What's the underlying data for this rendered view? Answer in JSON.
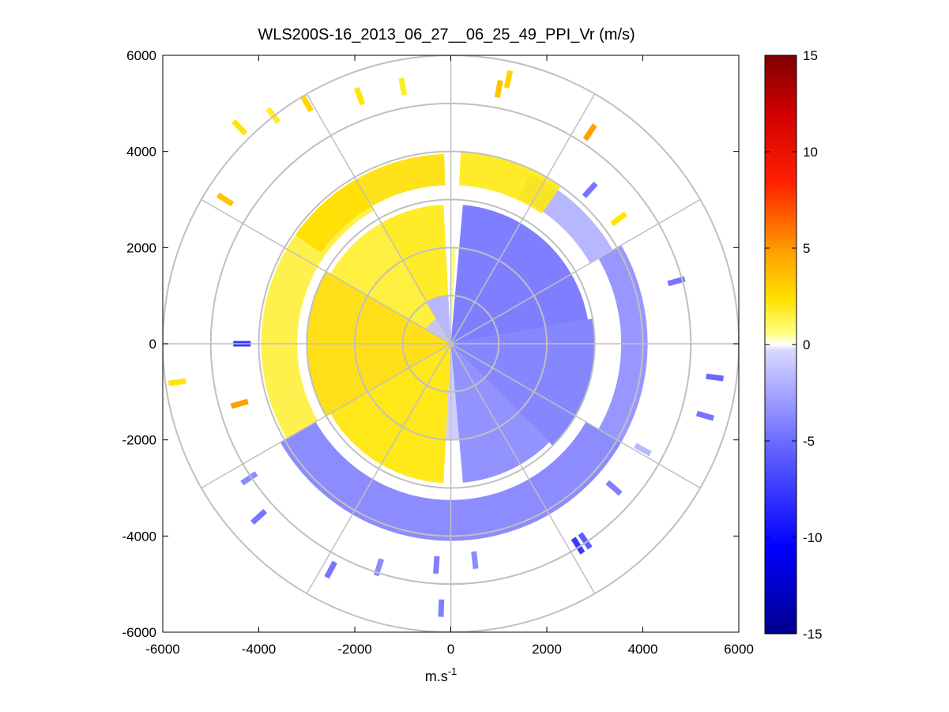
{
  "chart_data": {
    "type": "heatmap",
    "subtype": "polar PPI scan",
    "title": "WLS200S-16_2013_06_27__06_25_49_PPI_Vr (m/s)",
    "xlabel": "m.s",
    "xlabel_superscript": "-1",
    "ylabel": "",
    "xlim": [
      -6000,
      6000
    ],
    "ylim": [
      -6000,
      6000
    ],
    "x_ticks": [
      "-6000",
      "-4000",
      "-2000",
      "0",
      "2000",
      "4000",
      "6000"
    ],
    "y_ticks": [
      "6000",
      "4000",
      "2000",
      "0",
      "-2000",
      "-4000",
      "-6000"
    ],
    "x_tick_values": [
      -6000,
      -4000,
      -2000,
      0,
      2000,
      4000,
      6000
    ],
    "y_tick_values": [
      6000,
      4000,
      2000,
      0,
      -2000,
      -4000,
      -6000
    ],
    "range_rings": [
      1000,
      2000,
      3000,
      4000,
      5000,
      6000
    ],
    "spokes_deg": [
      0,
      30,
      60,
      90,
      120,
      150,
      180,
      210,
      240,
      270,
      300,
      330
    ],
    "colorbar": {
      "range": [
        -15,
        15
      ],
      "ticks": [
        "15",
        "10",
        "5",
        "0",
        "-5",
        "-10",
        "-15"
      ],
      "tick_values": [
        15,
        10,
        5,
        0,
        -5,
        -10,
        -15
      ],
      "colormap": "blue-white-yellow-red"
    },
    "colors": {
      "positive": "#ffe000",
      "positive_strong": "#ff9900",
      "negative": "#8080ff",
      "negative_strong": "#2020ff",
      "grid": "#c0c0c0"
    },
    "sectors": [
      {
        "az_from": 0,
        "az_to": 3,
        "r_from": 0,
        "r_to": 2000,
        "value": 0.5
      },
      {
        "az_from": 5,
        "az_to": 80,
        "r_from": 0,
        "r_to": 2900,
        "value": -3.2
      },
      {
        "az_from": 80,
        "az_to": 135,
        "r_from": 0,
        "r_to": 3000,
        "value": -2.8
      },
      {
        "az_from": 135,
        "az_to": 175,
        "r_from": 0,
        "r_to": 2900,
        "value": -2.2
      },
      {
        "az_from": 175,
        "az_to": 183,
        "r_from": 0,
        "r_to": 2000,
        "value": -0.6
      },
      {
        "az_from": 183,
        "az_to": 240,
        "r_from": 0,
        "r_to": 2900,
        "value": 2.0
      },
      {
        "az_from": 240,
        "az_to": 300,
        "r_from": 0,
        "r_to": 3000,
        "value": 2.3
      },
      {
        "az_from": 300,
        "az_to": 330,
        "r_from": 0,
        "r_to": 2900,
        "value": 1.5
      },
      {
        "az_from": 330,
        "az_to": 357,
        "r_from": 1000,
        "r_to": 2900,
        "value": 1.8
      },
      {
        "az_from": 330,
        "az_to": 357,
        "r_from": 0,
        "r_to": 1000,
        "value": -1.2
      },
      {
        "az_from": 300,
        "az_to": 330,
        "r_from": 0,
        "r_to": 600,
        "value": -0.8
      },
      {
        "az_from": 120,
        "az_to": 240,
        "r_from": 3250,
        "r_to": 4100,
        "value": -2.5
      },
      {
        "az_from": 60,
        "az_to": 120,
        "r_from": 3550,
        "r_to": 4100,
        "value": -2.0
      },
      {
        "az_from": 25,
        "az_to": 60,
        "r_from": 3350,
        "r_to": 3900,
        "value": -1.2
      },
      {
        "az_from": 240,
        "az_to": 330,
        "r_from": 3200,
        "r_to": 3950,
        "value": 1.3
      },
      {
        "az_from": 305,
        "az_to": 358,
        "r_from": 3300,
        "r_to": 3950,
        "value": 2.2
      },
      {
        "az_from": 3,
        "az_to": 35,
        "r_from": 3300,
        "r_to": 4000,
        "value": 1.8
      }
    ],
    "speckles": [
      {
        "x": -4350,
        "y": 0,
        "value": -6
      },
      {
        "x": -4400,
        "y": -1250,
        "value": 4
      },
      {
        "x": -5700,
        "y": -800,
        "value": 2
      },
      {
        "x": -4700,
        "y": 3000,
        "value": 3
      },
      {
        "x": -4400,
        "y": 4500,
        "value": 2
      },
      {
        "x": -3700,
        "y": 4750,
        "value": 1.5
      },
      {
        "x": -3000,
        "y": 5000,
        "value": 2.5
      },
      {
        "x": -1900,
        "y": 5150,
        "value": 2
      },
      {
        "x": -1000,
        "y": 5350,
        "value": 1.5
      },
      {
        "x": 1000,
        "y": 5300,
        "value": 3
      },
      {
        "x": 1200,
        "y": 5500,
        "value": 2.5
      },
      {
        "x": 2900,
        "y": 4400,
        "value": 4
      },
      {
        "x": 2900,
        "y": 3200,
        "value": -3
      },
      {
        "x": 3500,
        "y": 2600,
        "value": 2
      },
      {
        "x": 4700,
        "y": 1300,
        "value": -3
      },
      {
        "x": 5500,
        "y": -700,
        "value": -3.5
      },
      {
        "x": 5300,
        "y": -1500,
        "value": -3
      },
      {
        "x": 4000,
        "y": -2200,
        "value": -1
      },
      {
        "x": 3400,
        "y": -3000,
        "value": -2.5
      },
      {
        "x": 2800,
        "y": -4100,
        "value": -4
      },
      {
        "x": 2650,
        "y": -4200,
        "value": -6
      },
      {
        "x": 500,
        "y": -4500,
        "value": -2
      },
      {
        "x": -300,
        "y": -4600,
        "value": -2.5
      },
      {
        "x": -1500,
        "y": -4650,
        "value": -2
      },
      {
        "x": -2500,
        "y": -4700,
        "value": -3
      },
      {
        "x": -4000,
        "y": -3600,
        "value": -3
      },
      {
        "x": -4200,
        "y": -2800,
        "value": -2
      },
      {
        "x": -200,
        "y": -5500,
        "value": -2.5
      }
    ]
  }
}
